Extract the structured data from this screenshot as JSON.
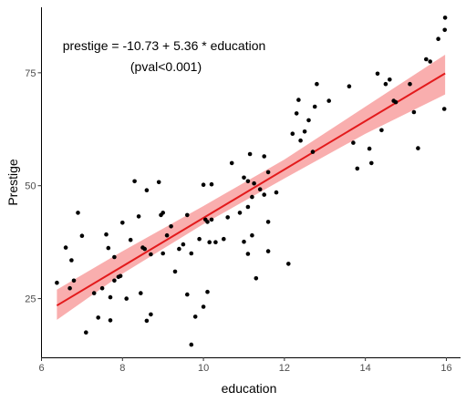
{
  "chart_data": {
    "type": "scatter",
    "xlabel": "education",
    "ylabel": "Prestige",
    "xlim": [
      6,
      16.35
    ],
    "ylim": [
      12,
      89.5
    ],
    "x_ticks": [
      6,
      8,
      10,
      12,
      14,
      16
    ],
    "y_ticks": [
      25,
      50,
      75
    ],
    "grid": false,
    "annotation": {
      "line1": "prestige = -10.73 + 5.36 * education",
      "line2": "(pval<0.001)"
    },
    "fit": {
      "intercept": -10.73,
      "slope": 5.36,
      "x_range": [
        6.38,
        15.97
      ],
      "band": [
        [
          6.38,
          20.3,
          27.0
        ],
        [
          8.0,
          30.5,
          35.5
        ],
        [
          10.0,
          41.5,
          45.5
        ],
        [
          12.0,
          51.6,
          55.8
        ],
        [
          14.0,
          61.5,
          67.5
        ],
        [
          15.97,
          70.2,
          79.0
        ]
      ],
      "line_color": "#e31a1c",
      "band_color": "#f8a0a0"
    },
    "point_color": "#000000",
    "points": [
      [
        6.38,
        28.5
      ],
      [
        6.6,
        36.3
      ],
      [
        6.7,
        27.3
      ],
      [
        6.74,
        33.5
      ],
      [
        6.8,
        29.0
      ],
      [
        6.9,
        44.0
      ],
      [
        7.0,
        38.9
      ],
      [
        7.1,
        17.5
      ],
      [
        7.3,
        26.2
      ],
      [
        7.4,
        20.8
      ],
      [
        7.5,
        27.3
      ],
      [
        7.6,
        39.2
      ],
      [
        7.65,
        36.2
      ],
      [
        7.7,
        20.2
      ],
      [
        7.7,
        25.3
      ],
      [
        7.8,
        34.2
      ],
      [
        7.8,
        29.0
      ],
      [
        7.9,
        29.8
      ],
      [
        7.95,
        30.0
      ],
      [
        8.0,
        41.8
      ],
      [
        8.1,
        25.0
      ],
      [
        8.2,
        38.0
      ],
      [
        8.3,
        51.0
      ],
      [
        8.4,
        43.2
      ],
      [
        8.45,
        26.2
      ],
      [
        8.5,
        36.3
      ],
      [
        8.55,
        36.0
      ],
      [
        8.6,
        49.0
      ],
      [
        8.6,
        20.1
      ],
      [
        8.7,
        21.5
      ],
      [
        8.7,
        34.8
      ],
      [
        8.9,
        50.8
      ],
      [
        8.95,
        43.5
      ],
      [
        9.0,
        44.0
      ],
      [
        9.0,
        35.0
      ],
      [
        9.1,
        39.0
      ],
      [
        9.2,
        41.0
      ],
      [
        9.3,
        31.0
      ],
      [
        9.4,
        36.0
      ],
      [
        9.5,
        37.0
      ],
      [
        9.6,
        43.5
      ],
      [
        9.6,
        25.9
      ],
      [
        9.7,
        35.0
      ],
      [
        9.7,
        14.8
      ],
      [
        9.8,
        21.0
      ],
      [
        9.9,
        38.2
      ],
      [
        10.0,
        50.2
      ],
      [
        10.0,
        23.2
      ],
      [
        10.05,
        42.5
      ],
      [
        10.1,
        42.0
      ],
      [
        10.1,
        26.5
      ],
      [
        10.15,
        37.5
      ],
      [
        10.2,
        42.5
      ],
      [
        10.2,
        50.3
      ],
      [
        10.3,
        37.5
      ],
      [
        10.5,
        38.2
      ],
      [
        10.6,
        43.0
      ],
      [
        10.7,
        55.0
      ],
      [
        10.9,
        44.0
      ],
      [
        11.0,
        51.8
      ],
      [
        11.0,
        37.6
      ],
      [
        11.1,
        45.3
      ],
      [
        11.1,
        51.0
      ],
      [
        11.1,
        34.9
      ],
      [
        11.15,
        57.0
      ],
      [
        11.2,
        39.0
      ],
      [
        11.2,
        47.5
      ],
      [
        11.25,
        50.5
      ],
      [
        11.3,
        29.5
      ],
      [
        11.4,
        49.2
      ],
      [
        11.5,
        48.0
      ],
      [
        11.5,
        56.5
      ],
      [
        11.6,
        53.0
      ],
      [
        11.6,
        35.5
      ],
      [
        11.6,
        42.0
      ],
      [
        11.8,
        48.5
      ],
      [
        12.1,
        32.7
      ],
      [
        12.2,
        61.5
      ],
      [
        12.3,
        66.0
      ],
      [
        12.35,
        69.0
      ],
      [
        12.4,
        60.0
      ],
      [
        12.5,
        62.0
      ],
      [
        12.6,
        64.5
      ],
      [
        12.7,
        57.5
      ],
      [
        12.75,
        67.5
      ],
      [
        12.8,
        72.5
      ],
      [
        13.1,
        68.8
      ],
      [
        13.6,
        72.0
      ],
      [
        13.7,
        59.5
      ],
      [
        13.8,
        53.8
      ],
      [
        14.1,
        58.2
      ],
      [
        14.15,
        55.0
      ],
      [
        14.3,
        74.8
      ],
      [
        14.4,
        62.3
      ],
      [
        14.5,
        72.5
      ],
      [
        14.6,
        73.5
      ],
      [
        14.7,
        68.8
      ],
      [
        14.75,
        68.5
      ],
      [
        15.1,
        72.5
      ],
      [
        15.2,
        66.3
      ],
      [
        15.3,
        58.3
      ],
      [
        15.5,
        78.0
      ],
      [
        15.6,
        77.5
      ],
      [
        15.8,
        82.5
      ],
      [
        15.95,
        67.0
      ],
      [
        15.96,
        84.5
      ],
      [
        15.97,
        87.2
      ]
    ]
  }
}
